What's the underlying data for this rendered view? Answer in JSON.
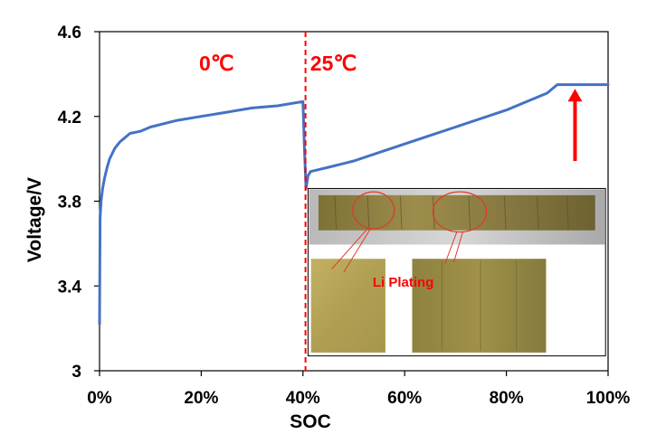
{
  "chart_data": {
    "type": "line",
    "xlabel": "SOC",
    "ylabel": "Voltage/V",
    "xlim": [
      0,
      100
    ],
    "ylim": [
      3.0,
      4.6
    ],
    "x_ticks": [
      "0%",
      "20%",
      "40%",
      "60%",
      "80%",
      "100%"
    ],
    "x_tick_values": [
      0,
      20,
      40,
      60,
      80,
      100
    ],
    "y_ticks": [
      "3",
      "3.4",
      "3.8",
      "4.2",
      "4.6"
    ],
    "y_tick_values": [
      3.0,
      3.4,
      3.8,
      4.2,
      4.6
    ],
    "grid": false,
    "series": [
      {
        "color": "#4472c4",
        "x": [
          0,
          0.1,
          0.3,
          0.6,
          1,
          1.5,
          2,
          3,
          4,
          5,
          6,
          8,
          10,
          15,
          20,
          25,
          30,
          35,
          40,
          40.3,
          40.6,
          41,
          41.5,
          45,
          50,
          55,
          60,
          65,
          70,
          75,
          80,
          85,
          88,
          90,
          95,
          100
        ],
        "y": [
          3.22,
          3.72,
          3.8,
          3.86,
          3.91,
          3.96,
          4.0,
          4.05,
          4.08,
          4.1,
          4.12,
          4.13,
          4.15,
          4.18,
          4.2,
          4.22,
          4.24,
          4.25,
          4.27,
          4.04,
          3.86,
          3.92,
          3.94,
          3.96,
          3.99,
          4.03,
          4.07,
          4.11,
          4.15,
          4.19,
          4.23,
          4.28,
          4.31,
          4.35,
          4.35,
          4.35
        ]
      }
    ],
    "divider": {
      "x": 40.5,
      "color": "#ff0000",
      "style": "dashed"
    },
    "regions": [
      {
        "label": "0℃",
        "x": 23,
        "y": 4.45
      },
      {
        "label": "25℃",
        "x": 46,
        "y": 4.45
      }
    ],
    "arrow": {
      "x": 93.5,
      "y_from": 3.99,
      "y_to": 4.33,
      "color": "#ff0000"
    },
    "inset": {
      "annotation": "Li Plating",
      "x_left": 41,
      "x_right": 99.5,
      "y_top": 3.86,
      "y_bottom": 3.07
    }
  }
}
